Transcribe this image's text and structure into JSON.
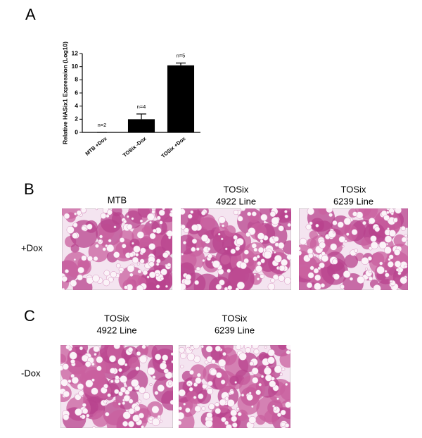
{
  "chart_data": {
    "type": "bar",
    "label": "A",
    "y_label": "Relative HASix1 Expression (Log10)",
    "categories": [
      "MTB +Dox",
      "TOSix -Dox",
      "TOSix +Dox"
    ],
    "values": [
      0,
      2.0,
      10.2
    ],
    "errors": [
      0,
      0.8,
      0.35
    ],
    "annotations": [
      "n=2",
      "n=4",
      "n=5"
    ],
    "color": "#000000",
    "ylim": [
      0,
      12
    ],
    "yticks": [
      0,
      2,
      4,
      6,
      8,
      10,
      12
    ]
  },
  "panels": [
    {
      "label": "B",
      "row_label": "+Dox",
      "images": [
        {
          "title": [
            "MTB"
          ]
        },
        {
          "title": [
            "TOSix",
            "4922 Line"
          ]
        },
        {
          "title": [
            "TOSix",
            "6239 Line"
          ]
        }
      ]
    },
    {
      "label": "C",
      "row_label": "-Dox",
      "images": [
        {
          "title": [
            "TOSix",
            "4922 Line"
          ]
        },
        {
          "title": [
            "TOSix",
            "6239 Line"
          ]
        }
      ]
    }
  ]
}
